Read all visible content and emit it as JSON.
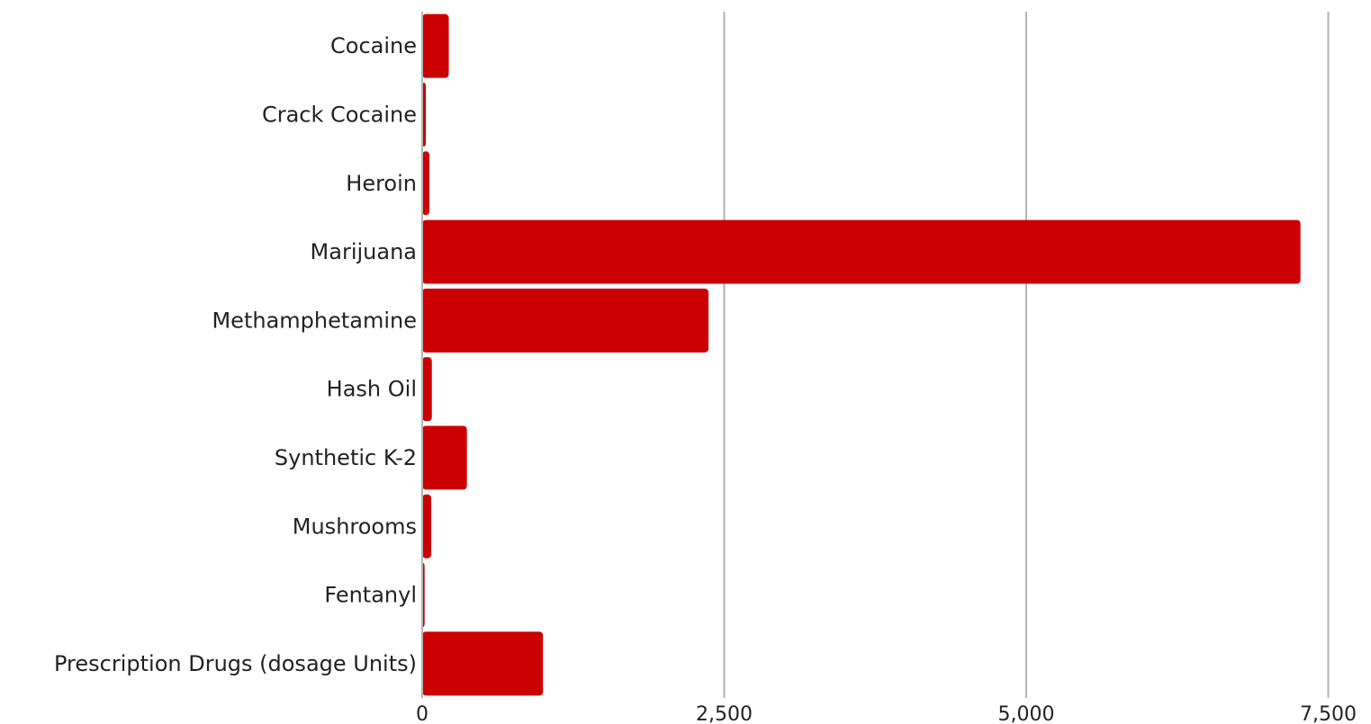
{
  "chart_data": {
    "type": "bar",
    "orientation": "horizontal",
    "title": "",
    "xlabel": "",
    "ylabel": "",
    "categories": [
      "Cocaine",
      "Crack Cocaine",
      "Heroin",
      "Marijuana",
      "Methamphetamine",
      "Hash Oil",
      "Synthetic K-2",
      "Mushrooms",
      "Fentanyl",
      "Prescription Drugs (dosage Units)"
    ],
    "values": [
      220,
      30,
      60,
      7270,
      2370,
      80,
      370,
      75,
      20,
      1000
    ],
    "xlim": [
      0,
      7800
    ],
    "xticks": [
      0,
      2500,
      5000,
      7500
    ],
    "xtick_labels": [
      "0",
      "2,500",
      "5,000",
      "7,500"
    ],
    "grid": "vertical",
    "legend": "none",
    "colors": {
      "bar": "#cc0000",
      "grid": "#b3b3b3",
      "text": "#222222"
    }
  }
}
